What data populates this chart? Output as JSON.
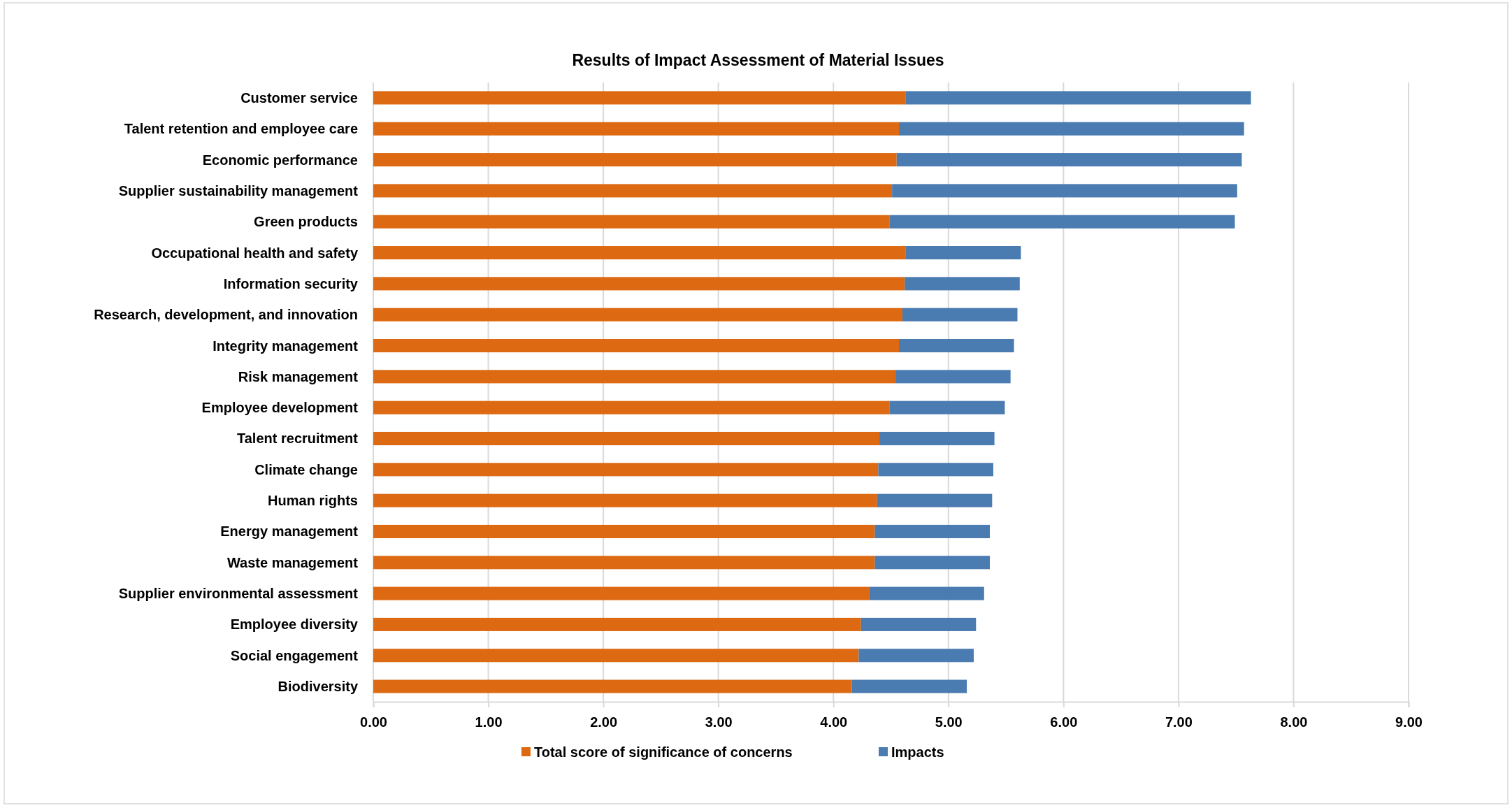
{
  "chart_data": {
    "type": "bar",
    "orientation": "horizontal",
    "stacked": true,
    "title": "Results of Impact Assessment of Material Issues",
    "categories": [
      "Customer service",
      "Talent retention and employee care",
      "Economic performance",
      "Supplier sustainability management",
      "Green products",
      "Occupational health and safety",
      "Information security",
      "Research, development, and innovation",
      "Integrity management",
      "Risk management",
      "Employee development",
      "Talent recruitment",
      "Climate change",
      "Human rights",
      "Energy management",
      "Waste management",
      "Supplier environmental assessment",
      "Employee diversity",
      "Social engagement",
      "Biodiversity"
    ],
    "series": [
      {
        "name": "Total score of significance of concerns",
        "color": "#dd6a13",
        "values": [
          4.63,
          4.57,
          4.55,
          4.51,
          4.49,
          4.63,
          4.62,
          4.6,
          4.57,
          4.54,
          4.49,
          4.4,
          4.39,
          4.38,
          4.36,
          4.36,
          4.31,
          4.24,
          4.22,
          4.16
        ]
      },
      {
        "name": "Impacts",
        "color": "#4a7bb1",
        "values": [
          3.0,
          3.0,
          3.0,
          3.0,
          3.0,
          1.0,
          1.0,
          1.0,
          1.0,
          1.0,
          1.0,
          1.0,
          1.0,
          1.0,
          1.0,
          1.0,
          1.0,
          1.0,
          1.0,
          1.0
        ]
      }
    ],
    "xlim": [
      0,
      9
    ],
    "xticks": [
      {
        "value": 0,
        "label": "0.00"
      },
      {
        "value": 1,
        "label": "1.00"
      },
      {
        "value": 2,
        "label": "2.00"
      },
      {
        "value": 3,
        "label": "3.00"
      },
      {
        "value": 4,
        "label": "4.00"
      },
      {
        "value": 5,
        "label": "5.00"
      },
      {
        "value": 6,
        "label": "6.00"
      },
      {
        "value": 7,
        "label": "7.00"
      },
      {
        "value": 8,
        "label": "8.00"
      },
      {
        "value": 9,
        "label": "9.00"
      }
    ],
    "grid": "x",
    "legend": "bottom"
  }
}
